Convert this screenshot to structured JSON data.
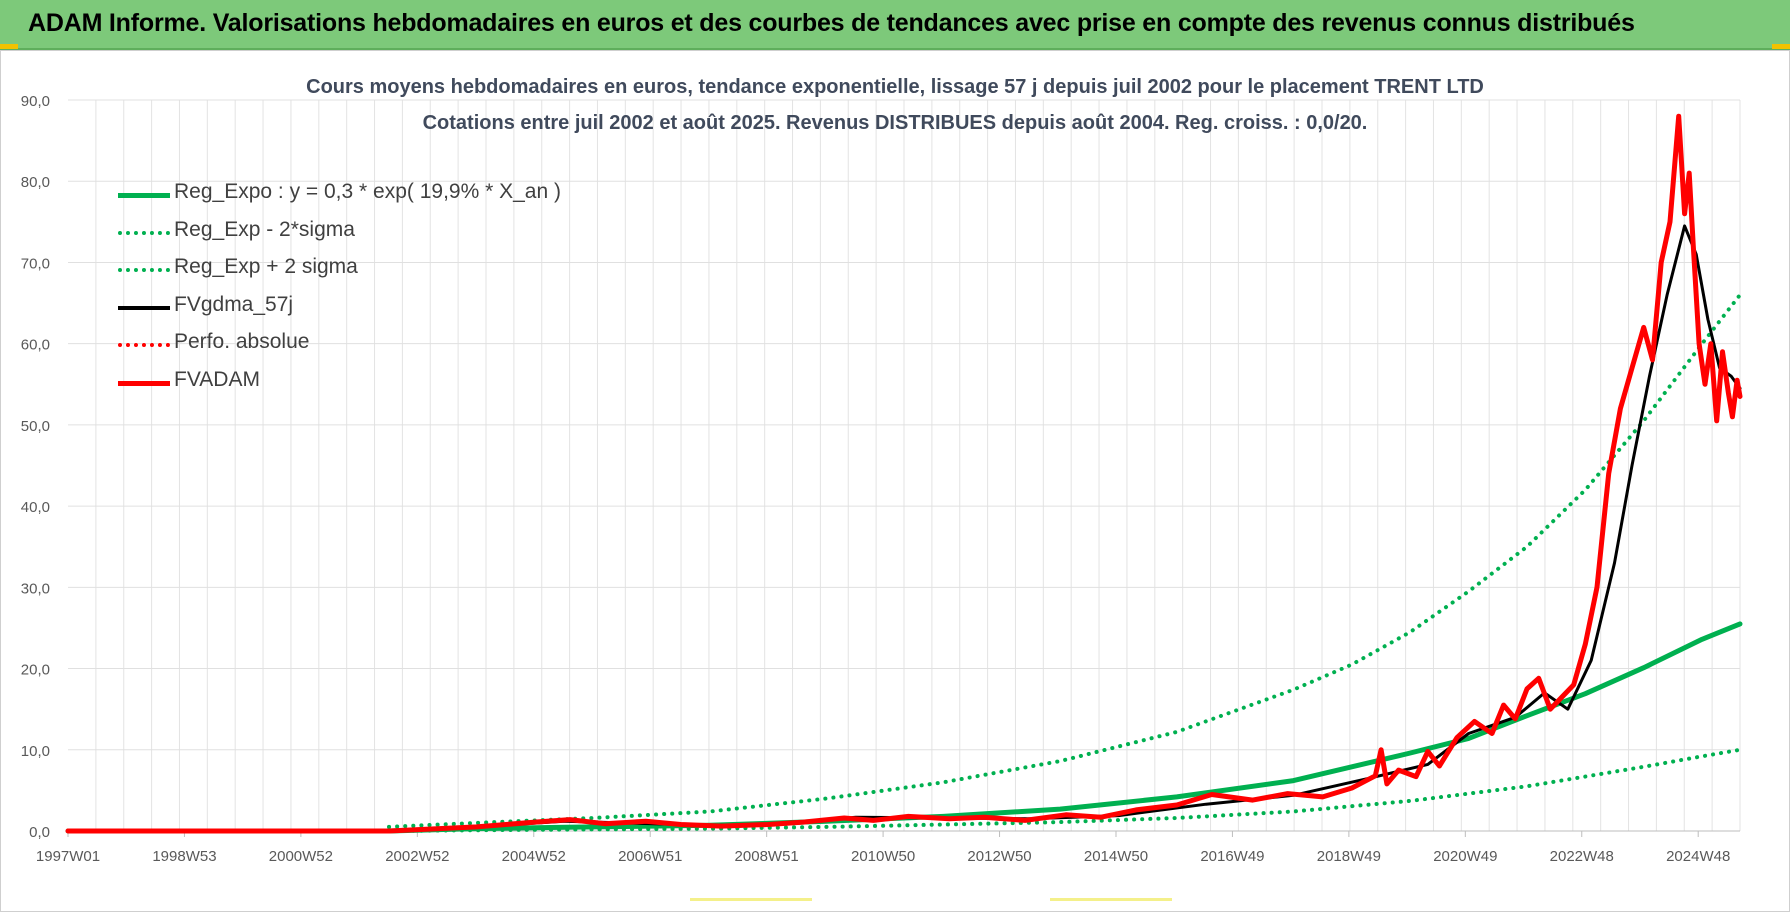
{
  "banner": {
    "title": "ADAM Informe. Valorisations hebdomadaires en euros et des courbes de tendances avec prise en compte des revenus connus distribués"
  },
  "colors": {
    "banner_bg": "#7dc97a",
    "reg_expo": "#00b050",
    "fvgdma": "#000000",
    "fvadam": "#ff0000",
    "perfo": "#ff0000",
    "title_text": "#404a5c"
  },
  "chart_data": {
    "type": "line",
    "title_line1": "Cours moyens hebdomadaires en euros, tendance exponentielle, lissage 57 j depuis juil 2002 pour le placement TRENT LTD",
    "title_line2": "Cotations entre juil 2002 et août 2025. Revenus DISTRIBUES depuis août 2004. Reg. croiss. : 0,0/20.",
    "ylim": [
      0,
      90
    ],
    "y_ticks": [
      "0,0",
      "10,0",
      "20,0",
      "30,0",
      "40,0",
      "50,0",
      "60,0",
      "70,0",
      "80,0",
      "90,0"
    ],
    "x_ticks": [
      "1997W01",
      "1998W53",
      "2000W52",
      "2002W52",
      "2004W52",
      "2006W51",
      "2008W51",
      "2010W50",
      "2012W50",
      "2014W50",
      "2016W49",
      "2018W49",
      "2020W49",
      "2022W48",
      "2024W48"
    ],
    "x_range": [
      1997.0,
      2025.65
    ],
    "grid": true,
    "legend_position": "top-left",
    "legend": [
      {
        "name": "Reg_Expo : y = 0,3 * exp( 19,9% *  X_an )",
        "color": "#00b050",
        "style": "solid"
      },
      {
        "name": "Reg_Exp - 2*sigma",
        "color": "#00b050",
        "style": "dotted"
      },
      {
        "name": "Reg_Exp + 2 sigma",
        "color": "#00b050",
        "style": "dotted"
      },
      {
        "name": "FVgdma_57j",
        "color": "#000000",
        "style": "solid-thin"
      },
      {
        "name": "Perfo. absolue",
        "color": "#ff0000",
        "style": "dotted"
      },
      {
        "name": "FVADAM",
        "color": "#ff0000",
        "style": "solid"
      }
    ],
    "series": [
      {
        "name": "Reg_Expo : y = 0,3 * exp( 19,9% *  X_an )",
        "color": "#00b050",
        "style": "solid",
        "x": [
          1997.0,
          2002.5,
          2004,
          2006,
          2008,
          2010,
          2012,
          2014,
          2016,
          2018,
          2020,
          2021,
          2022,
          2023,
          2024,
          2025,
          2025.65
        ],
        "values": [
          0.0,
          0.0,
          0.3,
          0.5,
          0.7,
          1.2,
          1.8,
          2.7,
          4.2,
          6.2,
          9.6,
          11.4,
          14.2,
          16.9,
          20.1,
          23.6,
          25.5
        ]
      },
      {
        "name": "Reg_Exp - 2*sigma",
        "color": "#00b050",
        "style": "dotted",
        "x": [
          2002.5,
          2004,
          2006,
          2008,
          2010,
          2012,
          2014,
          2016,
          2018,
          2020,
          2022,
          2024,
          2025,
          2025.65
        ],
        "values": [
          0.0,
          0.1,
          0.2,
          0.3,
          0.5,
          0.8,
          1.1,
          1.6,
          2.4,
          3.7,
          5.5,
          7.9,
          9.2,
          10.0
        ]
      },
      {
        "name": "Reg_Exp + 2 sigma",
        "color": "#00b050",
        "style": "dotted",
        "x": [
          2002.5,
          2004,
          2006,
          2008,
          2010,
          2012,
          2014,
          2016,
          2018,
          2019,
          2020,
          2021,
          2022,
          2023,
          2024,
          2025,
          2025.65
        ],
        "values": [
          0.5,
          1.0,
          1.6,
          2.4,
          4.0,
          6.0,
          8.6,
          12.2,
          17.4,
          20.5,
          24.5,
          29.5,
          35.0,
          42.0,
          50.5,
          60.0,
          66.0
        ]
      },
      {
        "name": "FVgdma_57j",
        "color": "#000000",
        "style": "solid-thin",
        "x": [
          1997.0,
          2002.5,
          2004,
          2005.5,
          2006.5,
          2008,
          2009,
          2010.5,
          2012,
          2013.5,
          2015,
          2016.5,
          2018,
          2019.3,
          2020.3,
          2021,
          2021.8,
          2022.3,
          2022.7,
          2023.1,
          2023.5,
          2023.8,
          2024.1,
          2024.4,
          2024.7,
          2024.9,
          2025.1,
          2025.3,
          2025.5,
          2025.65
        ],
        "values": [
          0.0,
          0.0,
          0.5,
          1.2,
          1.0,
          0.7,
          0.8,
          1.7,
          1.6,
          1.5,
          1.9,
          3.3,
          4.4,
          6.5,
          8.2,
          12.0,
          14.0,
          17.0,
          15.0,
          21.0,
          33.0,
          45.0,
          56.0,
          66.0,
          74.5,
          71.0,
          63.0,
          57.0,
          56.0,
          54.5
        ]
      },
      {
        "name": "FVADAM",
        "color": "#ff0000",
        "style": "solid",
        "x": [
          1997.0,
          2002.5,
          2004,
          2005.0,
          2005.6,
          2006.2,
          2006.9,
          2007.5,
          2008.2,
          2009.0,
          2009.6,
          2010.3,
          2010.8,
          2011.4,
          2012.1,
          2012.7,
          2013.4,
          2014.1,
          2014.7,
          2015.3,
          2016.0,
          2016.6,
          2017.3,
          2017.9,
          2018.5,
          2019.0,
          2019.4,
          2019.5,
          2019.6,
          2019.8,
          2020.1,
          2020.3,
          2020.5,
          2020.8,
          2021.1,
          2021.4,
          2021.6,
          2021.8,
          2022.0,
          2022.2,
          2022.4,
          2022.6,
          2022.8,
          2023.0,
          2023.2,
          2023.4,
          2023.6,
          2023.8,
          2024.0,
          2024.15,
          2024.3,
          2024.45,
          2024.6,
          2024.7,
          2024.78,
          2024.85,
          2024.95,
          2025.05,
          2025.15,
          2025.25,
          2025.35,
          2025.45,
          2025.52,
          2025.6,
          2025.65
        ],
        "values": [
          0.0,
          0.0,
          0.5,
          1.1,
          1.4,
          0.9,
          1.2,
          0.8,
          0.6,
          0.8,
          1.1,
          1.6,
          1.3,
          1.8,
          1.5,
          1.7,
          1.3,
          2.0,
          1.7,
          2.6,
          3.2,
          4.5,
          3.8,
          4.6,
          4.2,
          5.3,
          6.8,
          10.0,
          5.8,
          7.5,
          6.7,
          9.8,
          8.0,
          11.5,
          13.5,
          12.0,
          15.5,
          13.8,
          17.5,
          18.8,
          15.0,
          16.5,
          18.0,
          23.0,
          30.0,
          44.0,
          52.0,
          57.0,
          62.0,
          58.0,
          70.0,
          75.0,
          88.0,
          76.0,
          81.0,
          72.0,
          60.0,
          55.0,
          60.0,
          50.5,
          59.0,
          54.0,
          51.0,
          55.5,
          53.5
        ]
      }
    ]
  }
}
